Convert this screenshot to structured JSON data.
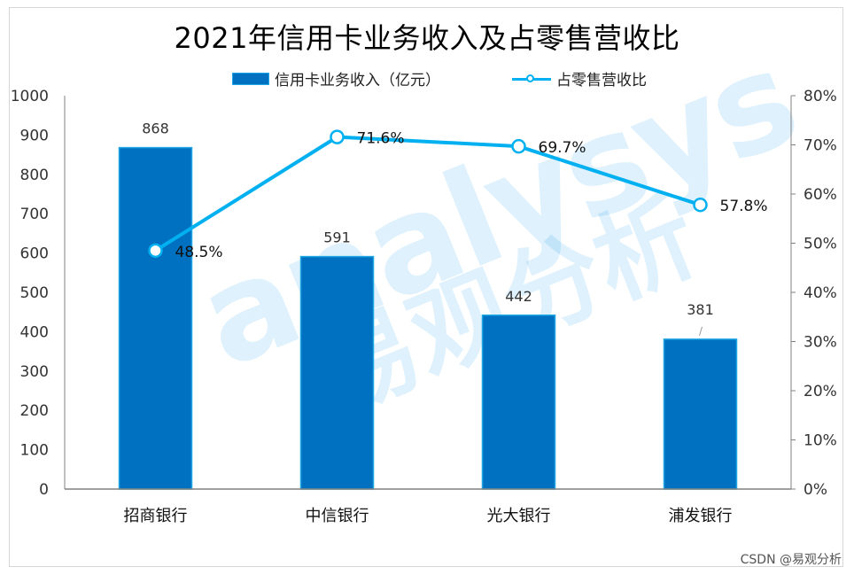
{
  "chart_data": {
    "type": "bar",
    "title": "2021年信用卡业务收入及占零售营收比",
    "categories": [
      "招商银行",
      "中信银行",
      "光大银行",
      "浦发银行"
    ],
    "series": [
      {
        "name": "信用卡业务收入（亿元）",
        "type": "bar",
        "axis": "left",
        "values": [
          868,
          591,
          442,
          381
        ],
        "labels": [
          "868",
          "591",
          "442",
          "381"
        ],
        "color": "#0070c0"
      },
      {
        "name": "占零售营收比",
        "type": "line",
        "axis": "right",
        "values": [
          48.5,
          71.6,
          69.7,
          57.8
        ],
        "labels": [
          "48.5%",
          "71.6%",
          "69.7%",
          "57.8%"
        ],
        "color": "#00b0f0"
      }
    ],
    "ylim_left": [
      0,
      1000
    ],
    "yticks_left": [
      "0",
      "100",
      "200",
      "300",
      "400",
      "500",
      "600",
      "700",
      "800",
      "900",
      "1000"
    ],
    "ylim_right": [
      0,
      80
    ],
    "yticks_right": [
      "0%",
      "10%",
      "20%",
      "30%",
      "40%",
      "50%",
      "60%",
      "70%",
      "80%"
    ],
    "legend": "top-center",
    "grid": false
  },
  "watermark": {
    "latin": "analysys",
    "cjk": "易观分析"
  },
  "credit": "CSDN @易观分析"
}
